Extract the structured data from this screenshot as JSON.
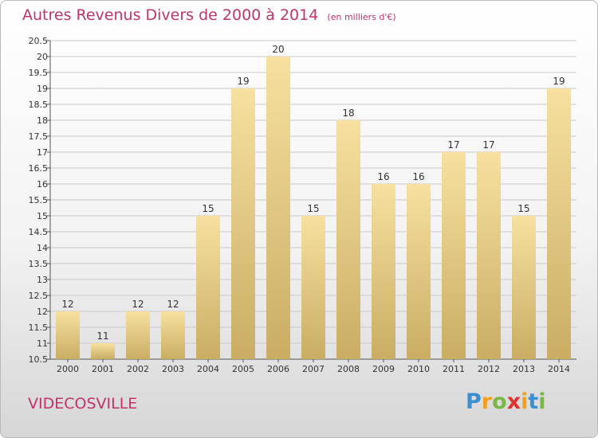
{
  "title": "Autres Revenus Divers de 2000 à 2014",
  "title_unit": "(en milliers d'€)",
  "commune": "VIDECOSVILLE",
  "brand": {
    "letters": [
      "P",
      "r",
      "o",
      "x",
      "i",
      "t",
      "i"
    ],
    "colors": [
      "#3a8fd4",
      "#f0a020",
      "#7ab844",
      "#e0322e",
      "#f0a020",
      "#3a8fd4",
      "#7ab844"
    ]
  },
  "colors": {
    "title": "#c0336b",
    "bar_light": "#f7e0a0",
    "bar_dark": "#c9ad63",
    "grid": "#c8c8c8"
  },
  "chart_data": {
    "type": "bar",
    "categories": [
      "2000",
      "2001",
      "2002",
      "2003",
      "2004",
      "2005",
      "2006",
      "2007",
      "2008",
      "2009",
      "2010",
      "2011",
      "2012",
      "2013",
      "2014"
    ],
    "values": [
      12,
      11,
      12,
      12,
      15,
      19,
      20,
      15,
      18,
      16,
      16,
      17,
      17,
      15,
      19
    ],
    "ylim": [
      10.5,
      20.5
    ],
    "yticks": [
      "10.5",
      "11",
      "11.5",
      "12",
      "12.5",
      "13",
      "13.5",
      "14",
      "14.5",
      "15",
      "15.5",
      "16",
      "16.5",
      "17",
      "17.5",
      "18",
      "18.5",
      "19",
      "19.5",
      "20",
      "20.5"
    ],
    "grid": true,
    "xlabel": "",
    "ylabel": ""
  }
}
